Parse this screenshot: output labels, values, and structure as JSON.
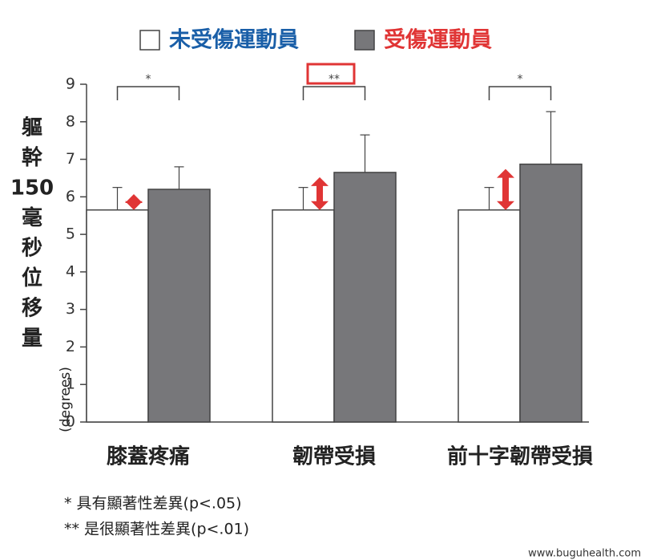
{
  "chart_data": {
    "type": "bar",
    "categories": [
      "膝蓋疼痛",
      "韌帶受損",
      "前十字韌帶受損"
    ],
    "series": [
      {
        "name": "未受傷運動員",
        "color": "#ffffff",
        "legend_color": "#1a5fa8",
        "values": [
          5.65,
          5.65,
          5.65
        ],
        "errors": [
          0.6,
          0.6,
          0.6
        ]
      },
      {
        "name": "受傷運動員",
        "color": "#77777a",
        "legend_color": "#e03535",
        "values": [
          6.2,
          6.65,
          6.87
        ],
        "errors": [
          0.6,
          1.0,
          1.4
        ]
      }
    ],
    "ylabel_lines": [
      "軀",
      "幹",
      "150",
      "毫",
      "秒",
      "位",
      "移",
      "量"
    ],
    "ylabel_unit": "(degrees)",
    "ylim": [
      0,
      9
    ],
    "yticks": [
      0,
      1,
      2,
      3,
      4,
      5,
      6,
      7,
      8,
      9
    ],
    "significance": [
      "*",
      "**",
      "*"
    ],
    "footnotes": [
      "* 具有顯著性差異(p<.05)",
      "** 是很顯著性差異(p<.01)"
    ],
    "watermark": "www.buguhealth.com"
  }
}
